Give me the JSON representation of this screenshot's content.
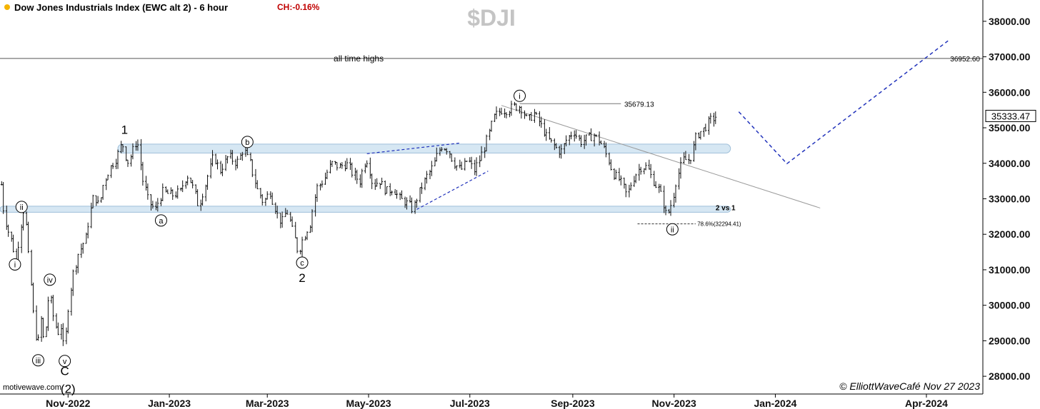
{
  "chart_data": {
    "type": "bar",
    "title": "Dow Jones Industrials Index (EWC alt 2) - 6 hour",
    "change_label": "CH:-0.16%",
    "watermark": "$DJI",
    "source": "motivewave.com",
    "copyright": "© ElliottWaveCafé Nov 27 2023",
    "last_price": "35333.47",
    "ylim": [
      27500,
      38600
    ],
    "y_ticks": [
      "28000.00",
      "29000.00",
      "30000.00",
      "31000.00",
      "32000.00",
      "33000.00",
      "34000.00",
      "35000.00",
      "36000.00",
      "37000.00",
      "38000.00"
    ],
    "y_tick_values": [
      28000,
      29000,
      30000,
      31000,
      32000,
      33000,
      34000,
      35000,
      36000,
      37000,
      38000
    ],
    "x_ticks": [
      "Nov-2022",
      "Jan-2023",
      "Mar-2023",
      "May-2023",
      "Jul-2023",
      "Sep-2023",
      "Nov-2023",
      "Jan-2024",
      "Apr-2024"
    ],
    "x_tick_dates": [
      "2022-11-01",
      "2023-01-01",
      "2023-03-01",
      "2023-05-01",
      "2023-07-01",
      "2023-09-01",
      "2023-11-01",
      "2024-01-01",
      "2024-04-01"
    ],
    "x_range": [
      "2022-09-21",
      "2024-05-05"
    ],
    "price_path": [
      [
        "2022-09-22",
        33400
      ],
      [
        "2022-09-24",
        32500
      ],
      [
        "2022-09-27",
        32000
      ],
      [
        "2022-09-30",
        31500
      ],
      [
        "2022-10-01",
        31200
      ],
      [
        "2022-10-04",
        32300
      ],
      [
        "2022-10-06",
        32800
      ],
      [
        "2022-10-09",
        31100
      ],
      [
        "2022-10-12",
        29500
      ],
      [
        "2022-10-14",
        28800
      ],
      [
        "2022-10-16",
        29600
      ],
      [
        "2022-10-18",
        28900
      ],
      [
        "2022-10-21",
        30400
      ],
      [
        "2022-10-23",
        29800
      ],
      [
        "2022-10-26",
        29200
      ],
      [
        "2022-10-28",
        29400
      ],
      [
        "2022-10-30",
        28700
      ],
      [
        "2022-11-02",
        30200
      ],
      [
        "2022-11-04",
        30800
      ],
      [
        "2022-11-07",
        31400
      ],
      [
        "2022-11-09",
        31600
      ],
      [
        "2022-11-12",
        31900
      ],
      [
        "2022-11-15",
        32700
      ],
      [
        "2022-11-17",
        33100
      ],
      [
        "2022-11-20",
        32800
      ],
      [
        "2022-11-23",
        33500
      ],
      [
        "2022-11-27",
        33900
      ],
      [
        "2022-12-01",
        34200
      ],
      [
        "2022-12-04",
        34600
      ],
      [
        "2022-12-07",
        34000
      ],
      [
        "2022-12-10",
        34300
      ],
      [
        "2022-12-13",
        34700
      ],
      [
        "2022-12-16",
        33600
      ],
      [
        "2022-12-20",
        32900
      ],
      [
        "2022-12-24",
        32700
      ],
      [
        "2022-12-28",
        33200
      ],
      [
        "2023-01-03",
        33100
      ],
      [
        "2023-01-08",
        33200
      ],
      [
        "2023-01-12",
        33700
      ],
      [
        "2023-01-15",
        33400
      ],
      [
        "2023-01-19",
        32800
      ],
      [
        "2023-01-23",
        33400
      ],
      [
        "2023-01-28",
        34200
      ],
      [
        "2023-02-01",
        33800
      ],
      [
        "2023-02-06",
        34200
      ],
      [
        "2023-02-11",
        34000
      ],
      [
        "2023-02-15",
        34400
      ],
      [
        "2023-02-19",
        34000
      ],
      [
        "2023-02-23",
        33300
      ],
      [
        "2023-02-27",
        32900
      ],
      [
        "2023-03-03",
        33200
      ],
      [
        "2023-03-07",
        32600
      ],
      [
        "2023-03-10",
        32300
      ],
      [
        "2023-03-13",
        32700
      ],
      [
        "2023-03-16",
        32200
      ],
      [
        "2023-03-20",
        31500
      ],
      [
        "2023-03-23",
        31900
      ],
      [
        "2023-03-27",
        32300
      ],
      [
        "2023-03-31",
        33300
      ],
      [
        "2023-04-04",
        33500
      ],
      [
        "2023-04-09",
        34000
      ],
      [
        "2023-04-14",
        33900
      ],
      [
        "2023-04-18",
        34000
      ],
      [
        "2023-04-22",
        33700
      ],
      [
        "2023-04-26",
        33500
      ],
      [
        "2023-04-30",
        34200
      ],
      [
        "2023-05-04",
        33400
      ],
      [
        "2023-05-08",
        33500
      ],
      [
        "2023-05-12",
        33200
      ],
      [
        "2023-05-16",
        33300
      ],
      [
        "2023-05-20",
        33000
      ],
      [
        "2023-05-24",
        32900
      ],
      [
        "2023-05-28",
        32700
      ],
      [
        "2023-06-01",
        33200
      ],
      [
        "2023-06-05",
        33600
      ],
      [
        "2023-06-09",
        33900
      ],
      [
        "2023-06-14",
        34500
      ],
      [
        "2023-06-18",
        34400
      ],
      [
        "2023-06-22",
        34000
      ],
      [
        "2023-06-26",
        33800
      ],
      [
        "2023-06-30",
        34100
      ],
      [
        "2023-07-04",
        33800
      ],
      [
        "2023-07-08",
        34200
      ],
      [
        "2023-07-12",
        34700
      ],
      [
        "2023-07-16",
        35300
      ],
      [
        "2023-07-20",
        35500
      ],
      [
        "2023-07-24",
        35500
      ],
      [
        "2023-07-28",
        35600
      ],
      [
        "2023-08-01",
        35600
      ],
      [
        "2023-08-05",
        35200
      ],
      [
        "2023-08-09",
        35400
      ],
      [
        "2023-08-13",
        35100
      ],
      [
        "2023-08-17",
        34700
      ],
      [
        "2023-08-21",
        34500
      ],
      [
        "2023-08-25",
        34300
      ],
      [
        "2023-08-29",
        34700
      ],
      [
        "2023-09-02",
        34900
      ],
      [
        "2023-09-06",
        34600
      ],
      [
        "2023-09-10",
        34700
      ],
      [
        "2023-09-14",
        34800
      ],
      [
        "2023-09-18",
        34600
      ],
      [
        "2023-09-22",
        34200
      ],
      [
        "2023-09-26",
        33700
      ],
      [
        "2023-09-30",
        33500
      ],
      [
        "2023-10-04",
        33100
      ],
      [
        "2023-10-08",
        33600
      ],
      [
        "2023-10-12",
        33900
      ],
      [
        "2023-10-16",
        33900
      ],
      [
        "2023-10-20",
        33500
      ],
      [
        "2023-10-24",
        33200
      ],
      [
        "2023-10-28",
        32500
      ],
      [
        "2023-10-31",
        32900
      ],
      [
        "2023-11-03",
        33600
      ],
      [
        "2023-11-07",
        34100
      ],
      [
        "2023-11-11",
        34100
      ],
      [
        "2023-11-15",
        34800
      ],
      [
        "2023-11-19",
        34950
      ],
      [
        "2023-11-23",
        35200
      ],
      [
        "2023-11-27",
        35333
      ]
    ],
    "annotations": [
      {
        "label": "all time highs",
        "date": "2023-04-25",
        "y": 36870
      },
      {
        "label": "2 vs 1",
        "date": "2023-12-02",
        "y": 32680
      }
    ],
    "levels": [
      {
        "label": "36952.60",
        "y": 36952.6
      },
      {
        "label": "35679.13",
        "y": 35679.13
      },
      {
        "label": "78.6%(32294.41)",
        "y": 32294.41
      }
    ],
    "zones": [
      {
        "from": "2022-12-01",
        "to": "2023-12-05",
        "y_low": 34290,
        "y_high": 34540
      },
      {
        "from": "2022-09-21",
        "to": "2023-12-05",
        "y_low": 32620,
        "y_high": 32790
      }
    ],
    "wave_labels": [
      {
        "label": "ii",
        "circled": true,
        "date": "2022-10-04",
        "y": 32770
      },
      {
        "label": "i",
        "circled": true,
        "date": "2022-09-30",
        "y": 31150
      },
      {
        "label": "iv",
        "circled": true,
        "date": "2022-10-21",
        "y": 30720
      },
      {
        "label": "iii",
        "circled": true,
        "date": "2022-10-14",
        "y": 28450
      },
      {
        "label": "v",
        "circled": true,
        "date": "2022-10-30",
        "y": 28430
      },
      {
        "label": "C",
        "circled": false,
        "date": "2022-10-30",
        "y": 28150
      },
      {
        "label": "(2)",
        "circled": false,
        "date": "2022-11-01",
        "y": 27650
      },
      {
        "label": "1",
        "circled": false,
        "date": "2022-12-05",
        "y": 34950
      },
      {
        "label": "a",
        "circled": true,
        "date": "2022-12-27",
        "y": 32390
      },
      {
        "label": "b",
        "circled": true,
        "date": "2023-02-17",
        "y": 34600
      },
      {
        "label": "c",
        "circled": true,
        "date": "2023-03-22",
        "y": 31200
      },
      {
        "label": "2",
        "circled": false,
        "date": "2023-03-22",
        "y": 30780
      },
      {
        "label": "i",
        "circled": true,
        "date": "2023-07-31",
        "y": 35900
      },
      {
        "label": "ii",
        "circled": true,
        "date": "2023-10-31",
        "y": 32140
      }
    ],
    "projection": [
      [
        "2023-12-10",
        35450
      ],
      [
        "2024-01-08",
        33990
      ],
      [
        "2024-04-14",
        37450
      ]
    ],
    "channel": [
      [
        "2023-04-30",
        34270
      ],
      [
        "2023-06-25",
        34570
      ],
      [
        "2023-07-12",
        33780
      ],
      [
        "2023-05-30",
        32700
      ]
    ],
    "trendline": [
      [
        "2023-07-20",
        35630
      ],
      [
        "2024-01-28",
        32740
      ]
    ],
    "legend": "none",
    "grid": false
  }
}
